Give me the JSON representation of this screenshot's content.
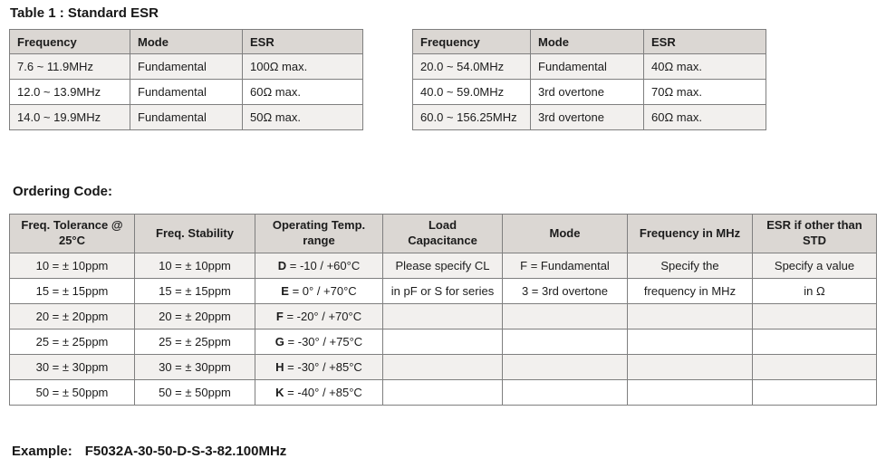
{
  "page": {
    "table1_title": "Table 1 : Standard ESR",
    "ordering_title": "Ordering Code:",
    "example_label": "Example:",
    "example_code": "F5032A-30-50-D-S-3-82.100MHz"
  },
  "colors": {
    "header_bg": "#dbd7d3",
    "stripe_bg": "#f2f0ee",
    "border": "#7f7f7f"
  },
  "esr_tables": [
    {
      "headers": [
        "Frequency",
        "Mode",
        "ESR"
      ],
      "rows": [
        [
          "7.6 ~ 11.9MHz",
          "Fundamental",
          "100Ω max."
        ],
        [
          "12.0 ~ 13.9MHz",
          "Fundamental",
          "60Ω max."
        ],
        [
          "14.0 ~ 19.9MHz",
          "Fundamental",
          "50Ω max."
        ]
      ]
    },
    {
      "headers": [
        "Frequency",
        "Mode",
        "ESR"
      ],
      "rows": [
        [
          "20.0 ~ 54.0MHz",
          "Fundamental",
          "40Ω max."
        ],
        [
          "40.0 ~ 59.0MHz",
          "3rd overtone",
          "70Ω max."
        ],
        [
          "60.0 ~ 156.25MHz",
          "3rd overtone",
          "60Ω max."
        ]
      ]
    }
  ],
  "ordering_table": {
    "headers": [
      "Freq. Tolerance @ 25°C",
      "Freq. Stability",
      "Operating Temp. range",
      "Load Capacitance",
      "Mode",
      "Frequency in MHz",
      "ESR if other than STD"
    ],
    "bold_prefix_column": 2,
    "rows": [
      [
        "10 = ± 10ppm",
        "10 = ± 10ppm",
        "D = -10 / +60°C",
        "Please specify CL",
        "F = Fundamental",
        "Specify the",
        "Specify a value"
      ],
      [
        "15 = ± 15ppm",
        "15 = ± 15ppm",
        "E = 0° / +70°C",
        "in pF or S for series",
        "3 = 3rd overtone",
        "frequency in MHz",
        "in Ω"
      ],
      [
        "20 = ± 20ppm",
        "20 = ± 20ppm",
        "F = -20° / +70°C",
        "",
        "",
        "",
        ""
      ],
      [
        "25 = ± 25ppm",
        "25 = ± 25ppm",
        "G = -30° / +75°C",
        "",
        "",
        "",
        ""
      ],
      [
        "30 = ± 30ppm",
        "30 = ± 30ppm",
        "H = -30° / +85°C",
        "",
        "",
        "",
        ""
      ],
      [
        "50 = ± 50ppm",
        "50 = ± 50ppm",
        "K = -40° / +85°C",
        "",
        "",
        "",
        ""
      ]
    ]
  }
}
